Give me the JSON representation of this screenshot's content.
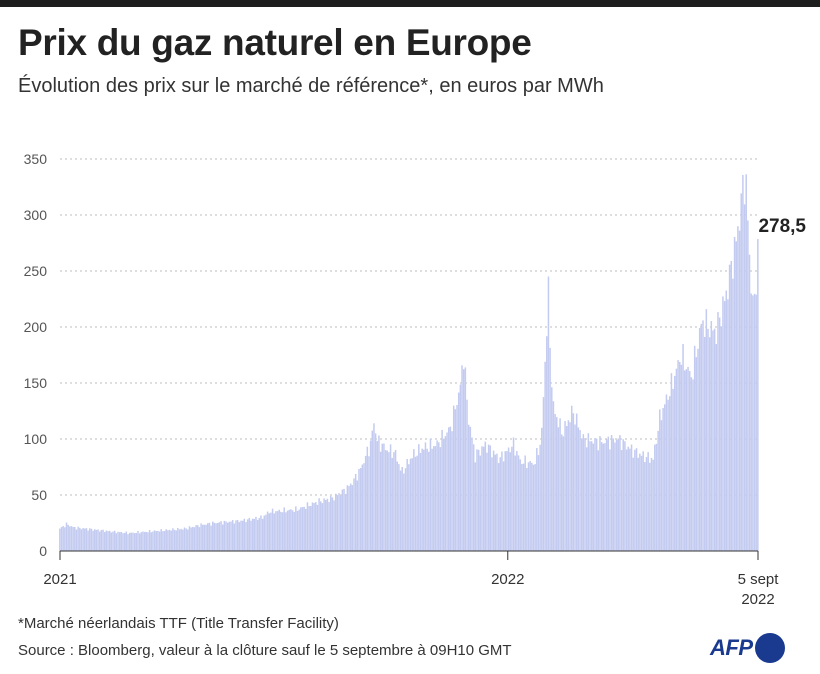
{
  "header": {
    "title": "Prix du gaz naturel en Europe",
    "subtitle": "Évolution des prix sur le marché de référence*, en euros par MWh"
  },
  "footer": {
    "footnote": "*Marché néerlandais TTF (Title Transfer Facility)",
    "source": "Source : Bloomberg, valeur à la clôture sauf le 5 septembre à 09H10 GMT",
    "logo": "AFP"
  },
  "colors": {
    "bars": "#c3cbf0",
    "grid": "#bdbdbd",
    "logo": "#1a3a8f",
    "topbar": "#1e1e1e"
  },
  "chart_data": {
    "type": "bar",
    "title": "Prix du gaz naturel en Europe",
    "unit": "euros par MWh",
    "ylim": [
      0,
      350
    ],
    "yticks": [
      0,
      50,
      100,
      150,
      200,
      250,
      300,
      350
    ],
    "xtick_labels": [
      {
        "label": "2021",
        "sublabel": "",
        "pos": 0
      },
      {
        "label": "2022",
        "sublabel": "",
        "pos": 0.6415
      },
      {
        "label": "5 sept",
        "sublabel": "2022",
        "pos": 1
      }
    ],
    "callout": {
      "label": "278,5",
      "value": 278.5
    },
    "x_start": "2021-01-01",
    "x_end": "2022-09-05",
    "series_note": "Prix TTF quotidien (valeurs lues sur le graphique, points clés)",
    "series": [
      {
        "t": 0.0,
        "v": 20
      },
      {
        "t": 0.01,
        "v": 24
      },
      {
        "t": 0.02,
        "v": 21
      },
      {
        "t": 0.05,
        "v": 19
      },
      {
        "t": 0.08,
        "v": 17
      },
      {
        "t": 0.1,
        "v": 16
      },
      {
        "t": 0.14,
        "v": 18
      },
      {
        "t": 0.18,
        "v": 20
      },
      {
        "t": 0.2,
        "v": 23
      },
      {
        "t": 0.22,
        "v": 25
      },
      {
        "t": 0.26,
        "v": 27
      },
      {
        "t": 0.29,
        "v": 30
      },
      {
        "t": 0.3,
        "v": 35
      },
      {
        "t": 0.34,
        "v": 37
      },
      {
        "t": 0.37,
        "v": 44
      },
      {
        "t": 0.39,
        "v": 47
      },
      {
        "t": 0.41,
        "v": 55
      },
      {
        "t": 0.42,
        "v": 62
      },
      {
        "t": 0.43,
        "v": 72
      },
      {
        "t": 0.445,
        "v": 95
      },
      {
        "t": 0.45,
        "v": 115
      },
      {
        "t": 0.455,
        "v": 98
      },
      {
        "t": 0.47,
        "v": 90
      },
      {
        "t": 0.48,
        "v": 88
      },
      {
        "t": 0.49,
        "v": 70
      },
      {
        "t": 0.505,
        "v": 85
      },
      {
        "t": 0.52,
        "v": 92
      },
      {
        "t": 0.54,
        "v": 95
      },
      {
        "t": 0.56,
        "v": 110
      },
      {
        "t": 0.575,
        "v": 150
      },
      {
        "t": 0.578,
        "v": 180
      },
      {
        "t": 0.585,
        "v": 120
      },
      {
        "t": 0.595,
        "v": 85
      },
      {
        "t": 0.61,
        "v": 95
      },
      {
        "t": 0.63,
        "v": 82
      },
      {
        "t": 0.65,
        "v": 95
      },
      {
        "t": 0.66,
        "v": 80
      },
      {
        "t": 0.68,
        "v": 78
      },
      {
        "t": 0.69,
        "v": 100
      },
      {
        "t": 0.696,
        "v": 180
      },
      {
        "t": 0.7,
        "v": 228
      },
      {
        "t": 0.706,
        "v": 130
      },
      {
        "t": 0.72,
        "v": 105
      },
      {
        "t": 0.735,
        "v": 125
      },
      {
        "t": 0.75,
        "v": 100
      },
      {
        "t": 0.775,
        "v": 97
      },
      {
        "t": 0.8,
        "v": 100
      },
      {
        "t": 0.82,
        "v": 90
      },
      {
        "t": 0.835,
        "v": 85
      },
      {
        "t": 0.85,
        "v": 82
      },
      {
        "t": 0.86,
        "v": 120
      },
      {
        "t": 0.875,
        "v": 145
      },
      {
        "t": 0.89,
        "v": 175
      },
      {
        "t": 0.905,
        "v": 155
      },
      {
        "t": 0.92,
        "v": 205
      },
      {
        "t": 0.94,
        "v": 195
      },
      {
        "t": 0.955,
        "v": 230
      },
      {
        "t": 0.97,
        "v": 280
      },
      {
        "t": 0.978,
        "v": 320
      },
      {
        "t": 0.982,
        "v": 340
      },
      {
        "t": 0.986,
        "v": 290
      },
      {
        "t": 0.99,
        "v": 240
      },
      {
        "t": 0.995,
        "v": 215
      },
      {
        "t": 1.0,
        "v": 278.5
      }
    ]
  }
}
